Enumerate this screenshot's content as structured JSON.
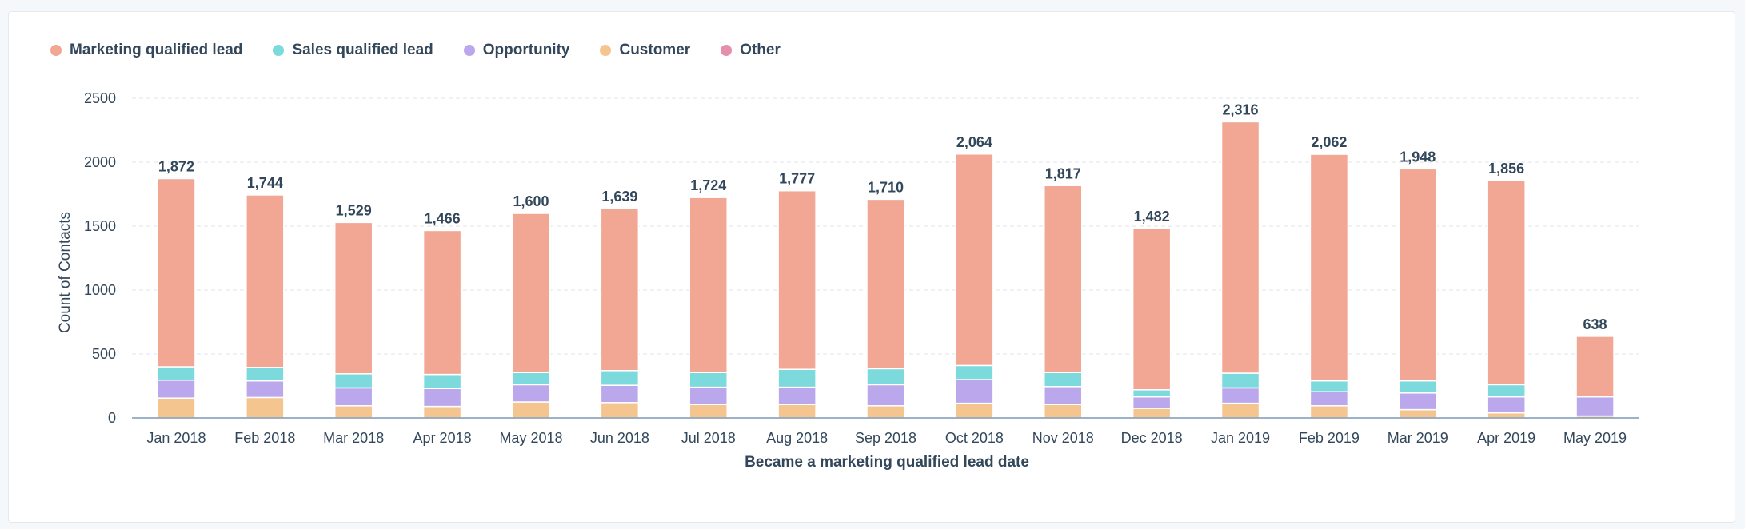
{
  "chart_data": {
    "type": "bar",
    "stacked": true,
    "xlabel": "Became a marketing qualified lead date",
    "ylabel": "Count of Contacts",
    "ylim": [
      0,
      2500
    ],
    "yticks": [
      0,
      500,
      1000,
      1500,
      2000,
      2500
    ],
    "grid": true,
    "legend_position": "top-left",
    "categories": [
      "Jan 2018",
      "Feb 2018",
      "Mar 2018",
      "Apr 2018",
      "May 2018",
      "Jun 2018",
      "Jul 2018",
      "Aug 2018",
      "Sep 2018",
      "Oct 2018",
      "Nov 2018",
      "Dec 2018",
      "Jan 2019",
      "Feb 2019",
      "Mar 2019",
      "Apr 2019",
      "May 2019"
    ],
    "totals": [
      "1,872",
      "1,744",
      "1,529",
      "1,466",
      "1,600",
      "1,639",
      "1,724",
      "1,777",
      "1,710",
      "2,064",
      "1,817",
      "1,482",
      "2,316",
      "2,062",
      "1,948",
      "1,856",
      "638"
    ],
    "series": [
      {
        "name": "Customer",
        "color": "#f5c58f",
        "values": [
          155,
          160,
          95,
          90,
          125,
          120,
          105,
          105,
          95,
          115,
          105,
          75,
          115,
          95,
          65,
          40,
          15
        ]
      },
      {
        "name": "Opportunity",
        "color": "#bba8ec",
        "values": [
          140,
          130,
          140,
          140,
          135,
          135,
          135,
          135,
          165,
          185,
          140,
          90,
          120,
          110,
          130,
          125,
          150
        ]
      },
      {
        "name": "Sales qualified lead",
        "color": "#7cd9dc",
        "values": [
          105,
          105,
          110,
          110,
          95,
          115,
          115,
          140,
          125,
          110,
          110,
          55,
          115,
          85,
          95,
          95,
          5
        ]
      },
      {
        "name": "Other",
        "color": "#e58fae",
        "values": [
          0,
          0,
          0,
          0,
          0,
          0,
          0,
          0,
          0,
          0,
          0,
          0,
          0,
          0,
          0,
          0,
          0
        ]
      },
      {
        "name": "Marketing qualified lead",
        "color": "#f2a794",
        "values": [
          1472,
          1349,
          1184,
          1126,
          1245,
          1269,
          1369,
          1397,
          1325,
          1654,
          1462,
          1262,
          1966,
          1772,
          1658,
          1596,
          468
        ]
      }
    ]
  },
  "legend": [
    {
      "label": "Marketing qualified lead",
      "color": "#f2a794"
    },
    {
      "label": "Sales qualified lead",
      "color": "#7cd9dc"
    },
    {
      "label": "Opportunity",
      "color": "#bba8ec"
    },
    {
      "label": "Customer",
      "color": "#f5c58f"
    },
    {
      "label": "Other",
      "color": "#e58fae"
    }
  ]
}
